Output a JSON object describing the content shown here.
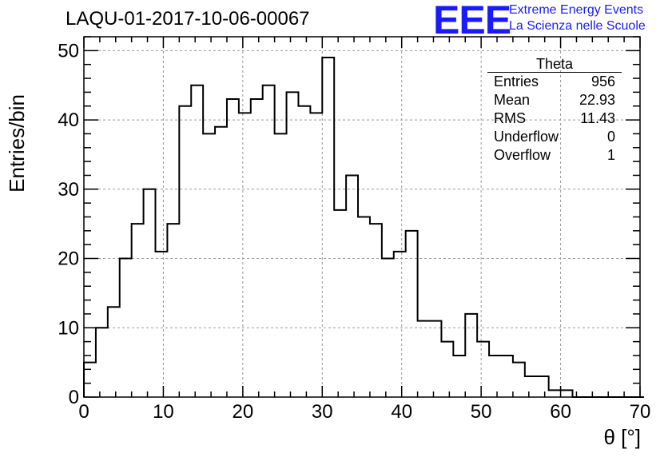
{
  "header": {
    "title": "LAQU-01-2017-10-06-00067",
    "logo_text": "EEE",
    "logo_line1": "Extreme Energy Events",
    "logo_line2": "La Scienza nelle Scuole"
  },
  "stats_box": {
    "title": "Theta",
    "rows": [
      {
        "label": "Entries",
        "value": "956"
      },
      {
        "label": "Mean",
        "value": "22.93"
      },
      {
        "label": "RMS",
        "value": "11.43"
      },
      {
        "label": "Underflow",
        "value": "0"
      },
      {
        "label": "Overflow",
        "value": "1"
      }
    ]
  },
  "chart_data": {
    "type": "bar",
    "subtype": "histogram-step",
    "title": "LAQU-01-2017-10-06-00067",
    "xlabel": "θ [°]",
    "ylabel": "Entries/bin",
    "xlim": [
      0,
      70
    ],
    "ylim": [
      0,
      52
    ],
    "xticks": [
      0,
      10,
      20,
      30,
      40,
      50,
      60,
      70
    ],
    "yticks": [
      0,
      10,
      20,
      30,
      40,
      50
    ],
    "grid": true,
    "bin_width": 1.5,
    "bin_start": 0,
    "values": [
      5,
      10,
      13,
      20,
      25,
      30,
      21,
      25,
      42,
      45,
      38,
      39,
      43,
      41,
      43,
      45,
      38,
      44,
      42,
      41,
      49,
      27,
      32,
      26,
      25,
      20,
      21,
      24,
      11,
      11,
      8,
      6,
      12,
      8,
      6,
      6,
      5,
      3,
      3,
      1,
      1,
      0,
      0,
      0,
      0,
      0,
      0
    ]
  }
}
